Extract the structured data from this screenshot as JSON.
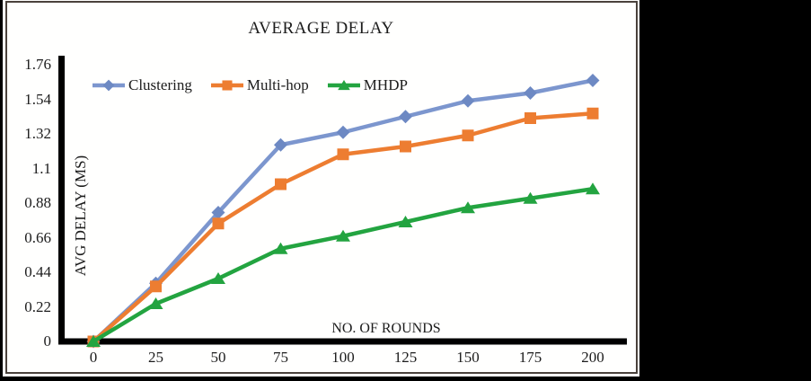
{
  "panel": {
    "background": "#ffffff",
    "border_color": "#4a423c",
    "outer_background": "#000000",
    "text_color": "#1c1c1c"
  },
  "chart_data": {
    "type": "line",
    "title": "AVERAGE DELAY",
    "xlabel": "NO. OF ROUNDS",
    "ylabel": "AVG DELAY (MS)",
    "x": [
      0,
      25,
      50,
      75,
      100,
      125,
      150,
      175,
      200
    ],
    "x_tick_labels": [
      "0",
      "25",
      "50",
      "75",
      "100",
      "125",
      "150",
      "175",
      "200"
    ],
    "y_ticks": [
      0,
      0.22,
      0.44,
      0.66,
      0.88,
      1.1,
      1.32,
      1.54,
      1.76
    ],
    "y_tick_labels": [
      "0",
      "0.22",
      "0.44",
      "0.66",
      "0.88",
      "1.1",
      "1.32",
      "1.54",
      "1.76"
    ],
    "xlim": [
      0,
      215
    ],
    "ylim": [
      0,
      1.82
    ],
    "grid": false,
    "legend_position": "top-inside",
    "axis_color": "#000000",
    "series": [
      {
        "name": "Clustering",
        "marker": "diamond",
        "color": "#7c96ce",
        "marker_color": "#6d89c3",
        "values": [
          0,
          0.37,
          0.82,
          1.25,
          1.33,
          1.43,
          1.53,
          1.58,
          1.66
        ]
      },
      {
        "name": "Multi-hop",
        "marker": "square",
        "color": "#ed7d31",
        "marker_color": "#ed7d31",
        "values": [
          0,
          0.35,
          0.75,
          1.0,
          1.19,
          1.24,
          1.31,
          1.42,
          1.45
        ]
      },
      {
        "name": "MHDP",
        "marker": "triangle",
        "color": "#23a440",
        "marker_color": "#23a440",
        "values": [
          0,
          0.24,
          0.4,
          0.59,
          0.67,
          0.76,
          0.85,
          0.91,
          0.97
        ]
      }
    ]
  }
}
